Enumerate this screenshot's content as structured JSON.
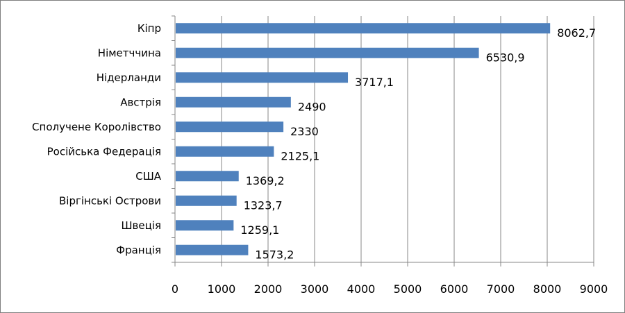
{
  "chart_data": {
    "type": "bar",
    "orientation": "horizontal",
    "title": "",
    "xlabel": "",
    "ylabel": "",
    "categories": [
      "Кіпр",
      "Німетччина",
      "Нідерланди",
      "Австрія",
      "Сполучене Королівство",
      "Російська Федерація",
      "США",
      "Віргінські Острови",
      "Швеція",
      "Франція"
    ],
    "values": [
      8062.7,
      6530.9,
      3717.1,
      2490,
      2330,
      2125.1,
      1369.2,
      1323.7,
      1259.1,
      1573.2
    ],
    "value_labels": [
      "8062,7",
      "6530,9",
      "3717,1",
      "2490",
      "2330",
      "2125,1",
      "1369,2",
      "1323,7",
      "1259,1",
      "1573,2"
    ],
    "xlim": [
      0,
      9000
    ],
    "xticks": [
      0,
      1000,
      2000,
      3000,
      4000,
      5000,
      6000,
      7000,
      8000,
      9000
    ],
    "xtick_labels": [
      "0",
      "1000",
      "2000",
      "3000",
      "4000",
      "5000",
      "6000",
      "7000",
      "8000",
      "9000"
    ],
    "grid": "vertical",
    "legend": "none",
    "bar_color": "#4f81bd",
    "grid_color": "#878787"
  }
}
